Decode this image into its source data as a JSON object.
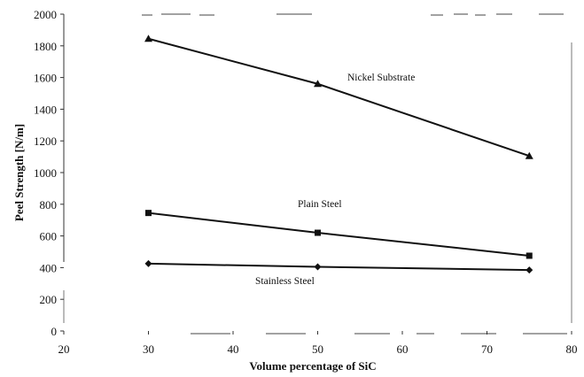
{
  "chart_data": {
    "type": "line",
    "title": "",
    "xlabel": "Volume percentage of SiC",
    "ylabel": "Peel Strength [N/m]",
    "xlim": [
      20,
      80
    ],
    "ylim": [
      0,
      2000
    ],
    "x_ticks": [
      20,
      30,
      40,
      50,
      60,
      70,
      80
    ],
    "y_ticks": [
      0,
      200,
      400,
      600,
      800,
      1000,
      1200,
      1400,
      1600,
      1800,
      2000
    ],
    "grid": false,
    "legend": "none",
    "series": [
      {
        "name": "Nickel Substrate",
        "marker": "triangle",
        "x": [
          30,
          50,
          75
        ],
        "y": [
          1845,
          1560,
          1105
        ]
      },
      {
        "name": "Plain Steel",
        "marker": "square",
        "x": [
          30,
          50,
          75
        ],
        "y": [
          745,
          620,
          475
        ]
      },
      {
        "name": "Stainless Steel",
        "marker": "diamond",
        "x": [
          30,
          50,
          75
        ],
        "y": [
          425,
          405,
          385
        ]
      }
    ]
  }
}
